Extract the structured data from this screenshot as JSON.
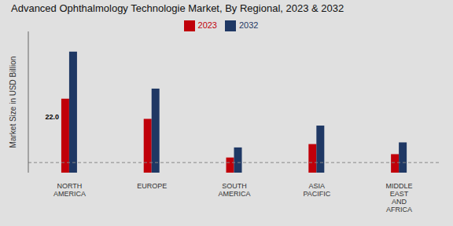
{
  "chart_data": {
    "type": "bar",
    "title": "Advanced Ophthalmology Technologie Market, By Regional, 2023 & 2032",
    "ylabel": "Market Size in USD Billion",
    "categories": [
      "NORTH\nAMERICA",
      "EUROPE",
      "SOUTH\nAMERICA",
      "ASIA\nPACIFIC",
      "MIDDLE\nEAST\nAND\nAFRICA"
    ],
    "series": [
      {
        "name": "2023",
        "color": "#c0000a",
        "values": [
          22.0,
          16.0,
          4.5,
          8.5,
          5.5
        ]
      },
      {
        "name": "2032",
        "color": "#1f3864",
        "values": [
          36.0,
          25.0,
          7.5,
          14.0,
          9.0
        ]
      }
    ],
    "ylim": [
      0,
      42
    ],
    "yticks": [],
    "grid": false,
    "legend": "top",
    "tick_labels": "x",
    "data_labels": false,
    "annotations": [
      {
        "text": "22.0",
        "series": "2023",
        "category": "NORTH\nAMERICA"
      }
    ],
    "reference_lines": [
      {
        "y": 3.0,
        "line_style": "dashed"
      }
    ]
  }
}
